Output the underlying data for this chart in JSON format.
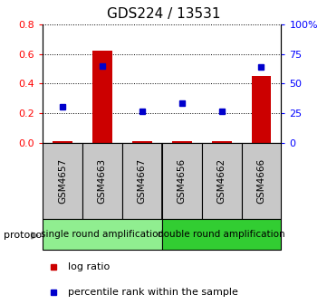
{
  "title": "GDS224 / 13531",
  "samples": [
    "GSM4657",
    "GSM4663",
    "GSM4667",
    "GSM4656",
    "GSM4662",
    "GSM4666"
  ],
  "log_ratio": [
    0.01,
    0.62,
    0.01,
    0.01,
    0.01,
    0.45
  ],
  "percentile_rank": [
    0.305,
    0.648,
    0.268,
    0.333,
    0.263,
    0.643
  ],
  "groups": [
    {
      "label": "single round amplification",
      "color": "#90EE90",
      "span": [
        0,
        3
      ]
    },
    {
      "label": "double round amplification",
      "color": "#32CD32",
      "span": [
        3,
        6
      ]
    }
  ],
  "left_ylim": [
    0,
    0.8
  ],
  "right_ylim": [
    0,
    100
  ],
  "left_yticks": [
    0,
    0.2,
    0.4,
    0.6,
    0.8
  ],
  "right_yticks": [
    0,
    25,
    50,
    75,
    100
  ],
  "right_yticklabels": [
    "0",
    "25",
    "50",
    "75",
    "100%"
  ],
  "bar_color": "#CC0000",
  "dot_color": "#0000CC",
  "title_fontsize": 11,
  "label_fontsize": 7.5,
  "group_label_fontsize": 7.5,
  "legend_fontsize": 8,
  "legend_marker_size": 5,
  "sample_box_color": "#C8C8C8",
  "protocol_label": "protocol"
}
